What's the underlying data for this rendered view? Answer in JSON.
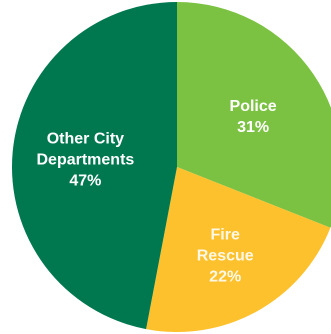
{
  "chart_data": {
    "type": "pie",
    "title": "",
    "start_angle_deg": 0,
    "direction": "clockwise",
    "slices": [
      {
        "name": "Police",
        "label_lines": [
          "Police"
        ],
        "value_text": "31%",
        "value": 31,
        "color": "#7cc242"
      },
      {
        "name": "Fire Rescue",
        "label_lines": [
          "Fire",
          "Rescue"
        ],
        "value_text": "22%",
        "value": 22,
        "color": "#fcc12d"
      },
      {
        "name": "Other City Departments",
        "label_lines": [
          "Other City",
          "Departments"
        ],
        "value_text": "47%",
        "value": 47,
        "color": "#00784f"
      }
    ]
  }
}
